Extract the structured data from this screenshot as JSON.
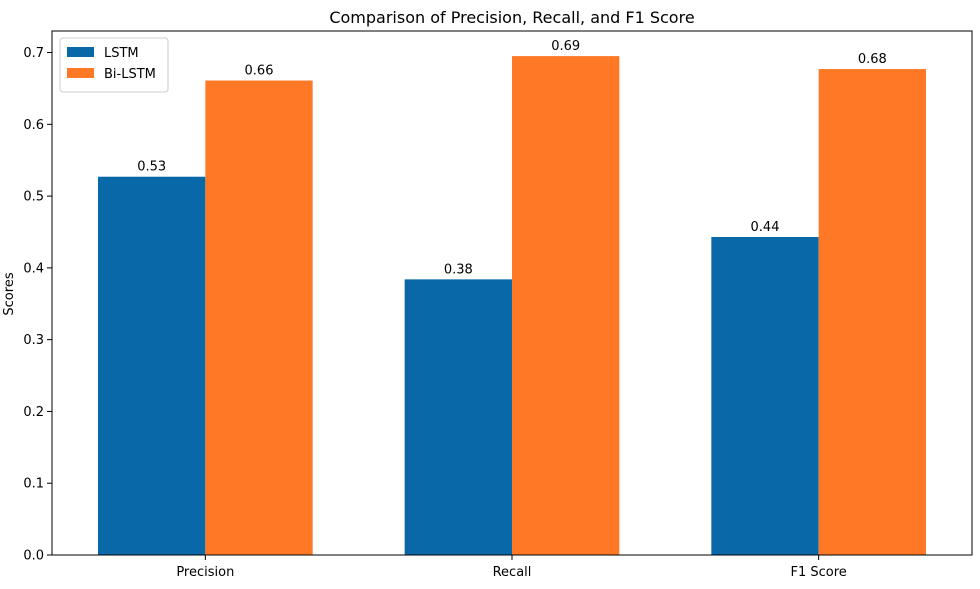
{
  "chart_data": {
    "type": "bar",
    "title": "Comparison of Precision, Recall, and F1 Score",
    "xlabel": "",
    "ylabel": "Scores",
    "categories": [
      "Precision",
      "Recall",
      "F1 Score"
    ],
    "series": [
      {
        "name": "LSTM",
        "color": "#0868a8",
        "values": [
          0.527,
          0.384,
          0.443
        ],
        "labels": [
          "0.53",
          "0.38",
          "0.44"
        ]
      },
      {
        "name": "Bi-LSTM",
        "color": "#ff7826",
        "values": [
          0.661,
          0.695,
          0.677
        ],
        "labels": [
          "0.66",
          "0.69",
          "0.68"
        ]
      }
    ],
    "ylim": [
      0,
      0.73
    ],
    "yticks": [
      0.0,
      0.1,
      0.2,
      0.3,
      0.4,
      0.5,
      0.6,
      0.7
    ],
    "ytick_labels": [
      "0.0",
      "0.1",
      "0.2",
      "0.3",
      "0.4",
      "0.5",
      "0.6",
      "0.7"
    ],
    "grid": false,
    "legend_position": "top-left"
  }
}
